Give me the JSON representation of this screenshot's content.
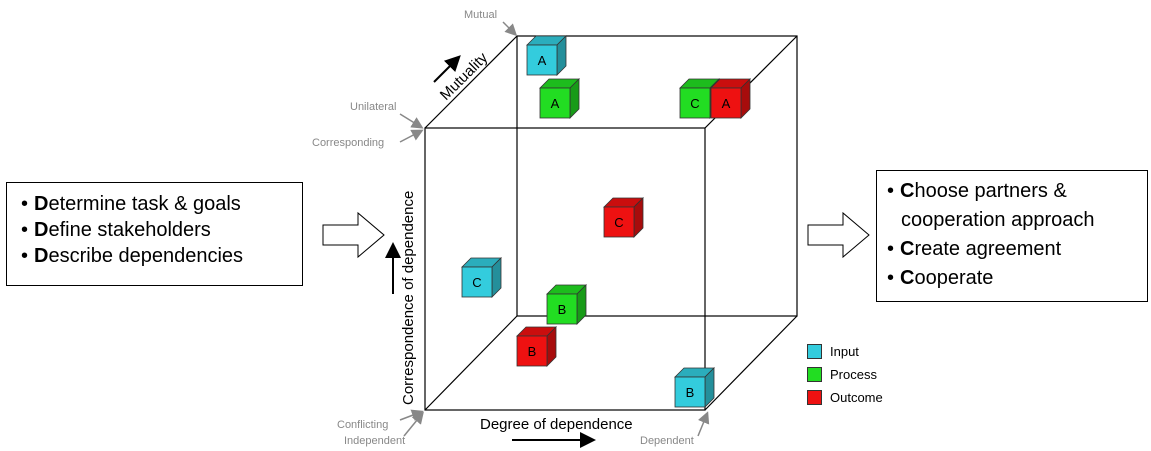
{
  "left_box": {
    "items": [
      {
        "initial": "D",
        "rest": "etermine task & goals"
      },
      {
        "initial": "D",
        "rest": "efine stakeholders"
      },
      {
        "initial": "D",
        "rest": "escribe dependencies"
      }
    ]
  },
  "right_box": {
    "lines": [
      {
        "bullet": "•",
        "initial": "C",
        "rest": "hoose partners &"
      },
      {
        "bullet": "",
        "initial": "",
        "rest": "cooperation approach"
      },
      {
        "bullet": "•",
        "initial": "C",
        "rest": "reate agreement"
      },
      {
        "bullet": "•",
        "initial": "C",
        "rest": "ooperate"
      }
    ]
  },
  "axes": {
    "x_label": "Degree of dependence",
    "y_label": "Correspondence of dependence",
    "z_label": "Mutuality"
  },
  "corner_labels": {
    "mutual": "Mutual",
    "unilateral": "Unilateral",
    "corresponding": "Corresponding",
    "conflicting": "Conflicting",
    "independent": "Independent",
    "dependent": "Dependent"
  },
  "legend": [
    {
      "label": "Input",
      "color": "#33ccdd"
    },
    {
      "label": "Process",
      "color": "#22dd22"
    },
    {
      "label": "Outcome",
      "color": "#ee1111"
    }
  ],
  "cubes": [
    {
      "letter": "A",
      "category": "Input"
    },
    {
      "letter": "A",
      "category": "Process"
    },
    {
      "letter": "C",
      "category": "Process"
    },
    {
      "letter": "A",
      "category": "Outcome"
    },
    {
      "letter": "C",
      "category": "Outcome"
    },
    {
      "letter": "C",
      "category": "Input"
    },
    {
      "letter": "B",
      "category": "Process"
    },
    {
      "letter": "B",
      "category": "Outcome"
    },
    {
      "letter": "B",
      "category": "Input"
    }
  ]
}
